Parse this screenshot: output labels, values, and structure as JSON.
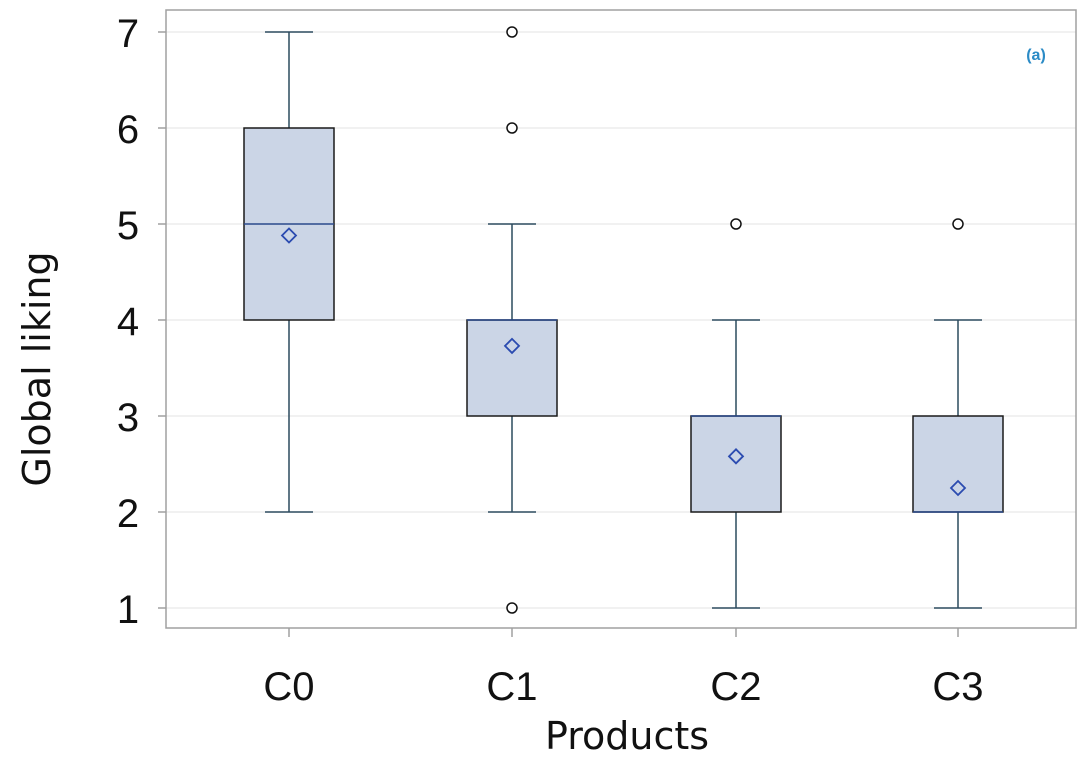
{
  "chart_data": {
    "type": "boxplot",
    "panel_label": "(a)",
    "xlabel": "Products",
    "ylabel": "Global liking",
    "ylim": [
      0.8,
      7.2
    ],
    "yticks": [
      1,
      2,
      3,
      4,
      5,
      6,
      7
    ],
    "grid": true,
    "categories": [
      "C0",
      "C1",
      "C2",
      "C3"
    ],
    "boxes": [
      {
        "category": "C0",
        "whisker_low": 2,
        "q1": 4,
        "median": 5,
        "q3": 6,
        "whisker_high": 7,
        "mean": 4.88,
        "outliers": []
      },
      {
        "category": "C1",
        "whisker_low": 2,
        "q1": 3,
        "median": 4,
        "q3": 4,
        "whisker_high": 5,
        "mean": 3.73,
        "outliers": [
          7,
          6,
          1
        ]
      },
      {
        "category": "C2",
        "whisker_low": 1,
        "q1": 2,
        "median": 3,
        "q3": 3,
        "whisker_high": 4,
        "mean": 2.58,
        "outliers": [
          5
        ]
      },
      {
        "category": "C3",
        "whisker_low": 1,
        "q1": 2,
        "median": 2,
        "q3": 3,
        "whisker_high": 4,
        "mean": 2.25,
        "outliers": [
          5
        ]
      }
    ],
    "colors": {
      "box_fill": "#cbd5e6",
      "box_edge": "#1a1a1a",
      "whisker": "#2b4a5e",
      "median": "#2b4a8c",
      "mean_marker": "#2b4bb0",
      "grid": "#e3e3e3",
      "frame": "#a0a0a0",
      "panel_label": "#2b8bc6"
    }
  }
}
